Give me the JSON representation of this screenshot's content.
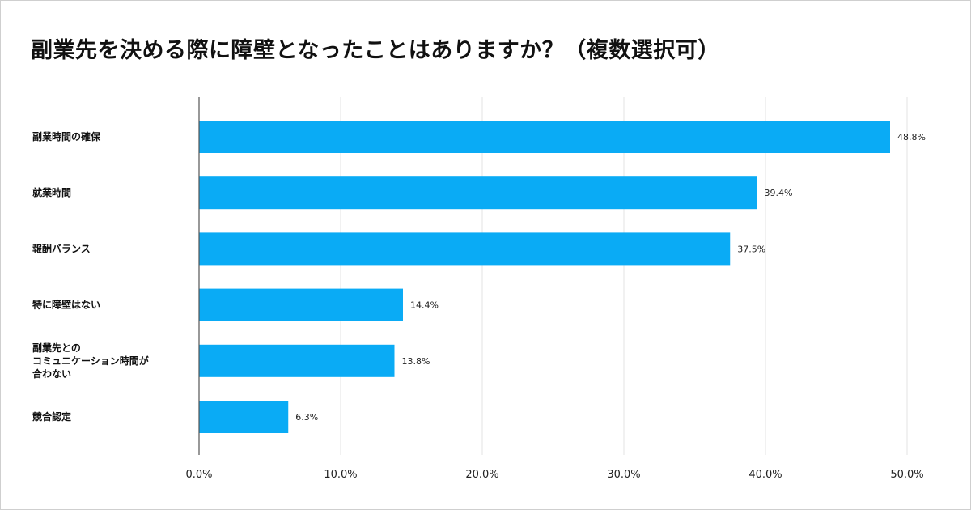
{
  "chart_data": {
    "type": "bar",
    "orientation": "horizontal",
    "title": "副業先を決める際に障壁となったことはありますか？（複数選択可）",
    "categories": [
      [
        "副業時間の確保"
      ],
      [
        "就業時間"
      ],
      [
        "報酬バランス"
      ],
      [
        "特に障壁はない"
      ],
      [
        "副業先との",
        "コミュニケーション時間が",
        "合わない"
      ],
      [
        "競合認定"
      ]
    ],
    "values": [
      48.8,
      39.4,
      37.5,
      14.4,
      13.8,
      6.3
    ],
    "value_labels": [
      "48.8%",
      "39.4%",
      "37.5%",
      "14.4%",
      "13.8%",
      "6.3%"
    ],
    "xlim": [
      0,
      50
    ],
    "xticks": [
      0,
      10,
      20,
      30,
      40,
      50
    ],
    "xtick_labels": [
      "0.0%",
      "10.0%",
      "20.0%",
      "30.0%",
      "40.0%",
      "50.0%"
    ],
    "xlabel": "",
    "ylabel": "",
    "grid": true,
    "bar_color": "#0aabf5",
    "grid_color": "#e3e3e3",
    "axis_color": "#555555"
  }
}
